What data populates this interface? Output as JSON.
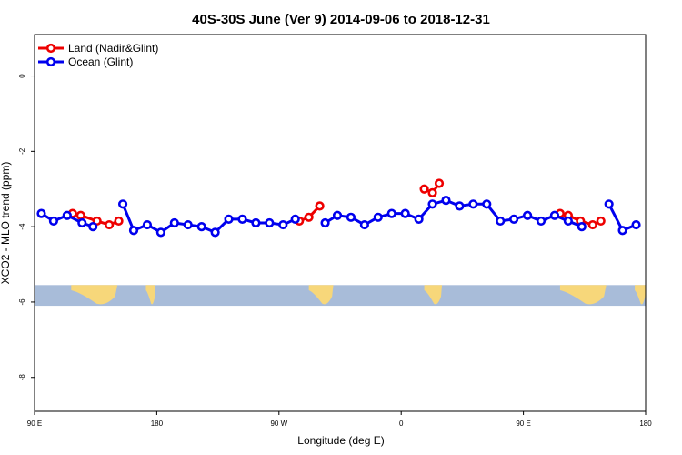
{
  "chart_data": {
    "type": "line",
    "title": "40S-30S June (Ver 9)   2014-09-06 to 2018-12-31",
    "xlabel": "Longitude (deg E)",
    "ylabel": "XCO2 - MLO trend (ppm)",
    "x_unwrapped_range": [
      90,
      540
    ],
    "xlim": [
      90,
      540
    ],
    "ylim": [
      -8.9,
      1.1
    ],
    "x_ticks": [
      {
        "value": 90,
        "label": "90 E"
      },
      {
        "value": 180,
        "label": "180"
      },
      {
        "value": 270,
        "label": "90 W"
      },
      {
        "value": 360,
        "label": "0"
      },
      {
        "value": 450,
        "label": "90 E"
      },
      {
        "value": 540,
        "label": "180"
      }
    ],
    "y_ticks": [
      {
        "value": 0,
        "label": "0"
      },
      {
        "value": -2,
        "label": "-2"
      },
      {
        "value": -4,
        "label": "-4"
      },
      {
        "value": -6,
        "label": "-6"
      },
      {
        "value": -8,
        "label": "-8"
      }
    ],
    "map_band": {
      "y_top": -5.55,
      "y_bottom": -6.1
    },
    "land_patches": [
      {
        "name": "Australia",
        "x": [
          117,
          151
        ]
      },
      {
        "name": "New Zealand",
        "x": [
          172,
          179
        ]
      },
      {
        "name": "South America",
        "x": [
          292,
          310
        ]
      },
      {
        "name": "Africa",
        "x": [
          377,
          390
        ]
      },
      {
        "name": "Australia",
        "x": [
          477,
          511
        ]
      },
      {
        "name": "New Zealand",
        "x": [
          532,
          540
        ]
      }
    ],
    "legend_position": "top-left",
    "series": [
      {
        "name": "Land (Nadir&Glint)",
        "color": "#ee0000",
        "segments": [
          [
            [
              118,
              -3.65
            ],
            [
              124,
              -3.7
            ],
            [
              136,
              -3.85
            ],
            [
              145,
              -3.95
            ],
            [
              152,
              -3.85
            ]
          ],
          [
            [
              285,
              -3.85
            ],
            [
              292,
              -3.75
            ],
            [
              300,
              -3.45
            ]
          ],
          [
            [
              377,
              -3.0
            ],
            [
              383,
              -3.1
            ],
            [
              388,
              -2.85
            ]
          ],
          [
            [
              477,
              -3.65
            ],
            [
              483,
              -3.7
            ],
            [
              492,
              -3.85
            ],
            [
              501,
              -3.95
            ],
            [
              507,
              -3.85
            ]
          ]
        ]
      },
      {
        "name": "Ocean (Glint)",
        "color": "#0000ee",
        "segments": [
          [
            [
              95,
              -3.65
            ],
            [
              104,
              -3.85
            ],
            [
              114,
              -3.7
            ],
            [
              125,
              -3.9
            ],
            [
              133,
              -4.0
            ]
          ],
          [
            [
              155,
              -3.4
            ],
            [
              163,
              -4.1
            ],
            [
              173,
              -3.95
            ],
            [
              183,
              -4.15
            ],
            [
              193,
              -3.9
            ],
            [
              203,
              -3.95
            ],
            [
              213,
              -4.0
            ],
            [
              223,
              -4.15
            ],
            [
              233,
              -3.8
            ],
            [
              243,
              -3.8
            ],
            [
              253,
              -3.9
            ],
            [
              263,
              -3.9
            ],
            [
              273,
              -3.95
            ],
            [
              282,
              -3.8
            ]
          ],
          [
            [
              304,
              -3.9
            ],
            [
              313,
              -3.7
            ],
            [
              323,
              -3.75
            ],
            [
              333,
              -3.95
            ],
            [
              343,
              -3.75
            ],
            [
              353,
              -3.65
            ],
            [
              363,
              -3.65
            ],
            [
              373,
              -3.8
            ],
            [
              383,
              -3.4
            ],
            [
              393,
              -3.3
            ],
            [
              403,
              -3.45
            ],
            [
              413,
              -3.4
            ],
            [
              423,
              -3.4
            ],
            [
              433,
              -3.85
            ],
            [
              443,
              -3.8
            ],
            [
              453,
              -3.7
            ],
            [
              463,
              -3.85
            ],
            [
              473,
              -3.7
            ],
            [
              483,
              -3.85
            ],
            [
              493,
              -4.0
            ]
          ],
          [
            [
              513,
              -3.4
            ],
            [
              523,
              -4.1
            ],
            [
              533,
              -3.95
            ]
          ]
        ]
      }
    ]
  }
}
